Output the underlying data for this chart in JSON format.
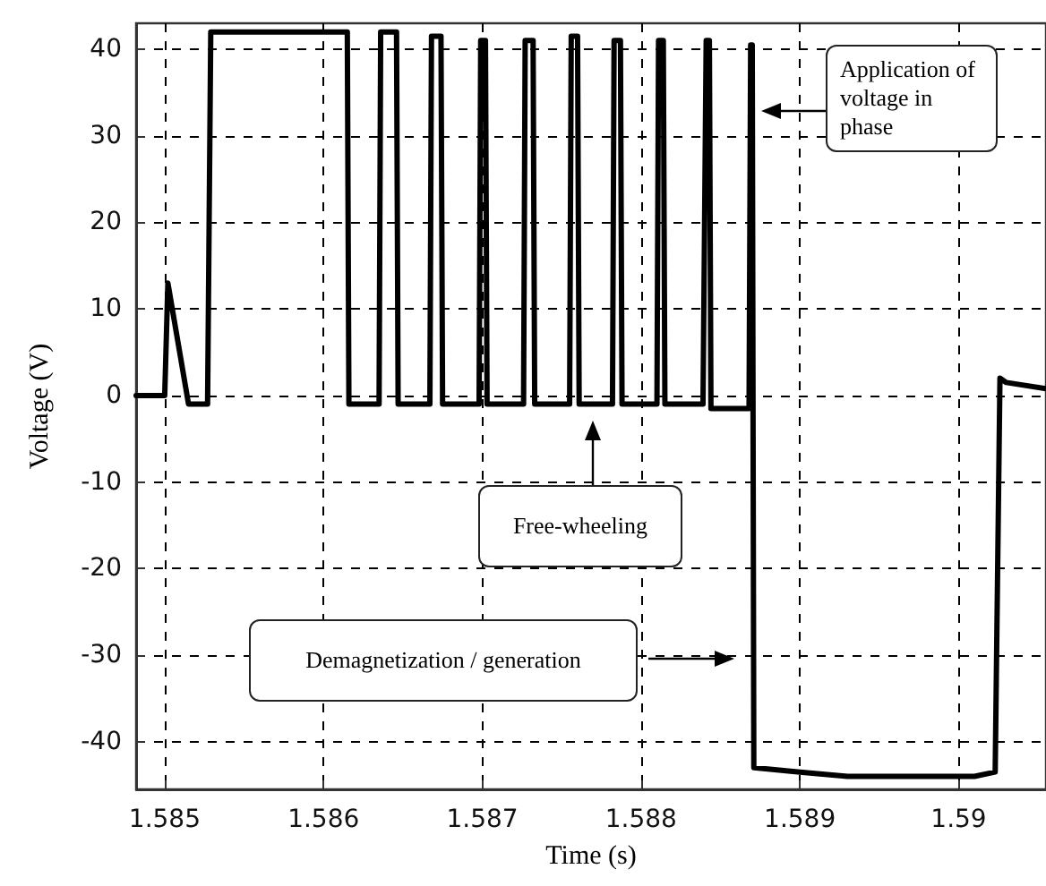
{
  "chart_data": {
    "type": "line",
    "xlabel": "Time (s)",
    "ylabel": "Voltage (V)",
    "xlim": [
      1.58482,
      1.59055
    ],
    "xticks": [
      1.585,
      1.586,
      1.587,
      1.588,
      1.589,
      1.59
    ],
    "ylim": [
      -45.5,
      43
    ],
    "yticks": [
      -40,
      -30,
      -20,
      -10,
      0,
      10,
      20,
      30,
      40
    ],
    "grid": true,
    "marker": "none",
    "line_style": "solid",
    "annotations": [
      "Application of voltage in phase",
      "Free-wheeling",
      "Demagnetization / generation"
    ],
    "series": [
      {
        "color": "#000000",
        "x": [
          1.58482,
          1.585,
          1.58502,
          1.58515,
          1.58527,
          1.58529,
          1.58615,
          1.58616,
          1.58635,
          1.58636,
          1.58646,
          1.58647,
          1.58667,
          1.58668,
          1.58674,
          1.58675,
          1.58698,
          1.58699,
          1.58702,
          1.58703,
          1.58726,
          1.58727,
          1.58732,
          1.58733,
          1.58755,
          1.58756,
          1.5876,
          1.58761,
          1.58782,
          1.58783,
          1.58787,
          1.58788,
          1.5881,
          1.58811,
          1.58814,
          1.58815,
          1.58839,
          1.58841,
          1.58843,
          1.58844,
          1.58868,
          1.58869,
          1.5887,
          1.58871,
          1.589,
          1.5893,
          1.5901,
          1.59023,
          1.59026,
          1.5903,
          1.59055
        ],
        "values": [
          0,
          0,
          13,
          -1,
          -1,
          42,
          42,
          -1,
          -1,
          42,
          42,
          -1,
          -1,
          41.5,
          41.5,
          -1,
          -1,
          41,
          41,
          -1,
          -1,
          41,
          41,
          -1,
          -1,
          41.5,
          41.5,
          -1,
          -1,
          41,
          41,
          -1,
          -1,
          41,
          41,
          -1,
          -1,
          41,
          41,
          -1.5,
          -1.5,
          40.5,
          40.5,
          -43,
          -43.5,
          -44,
          -44,
          -43.5,
          2,
          1.5,
          0.8
        ]
      }
    ]
  }
}
